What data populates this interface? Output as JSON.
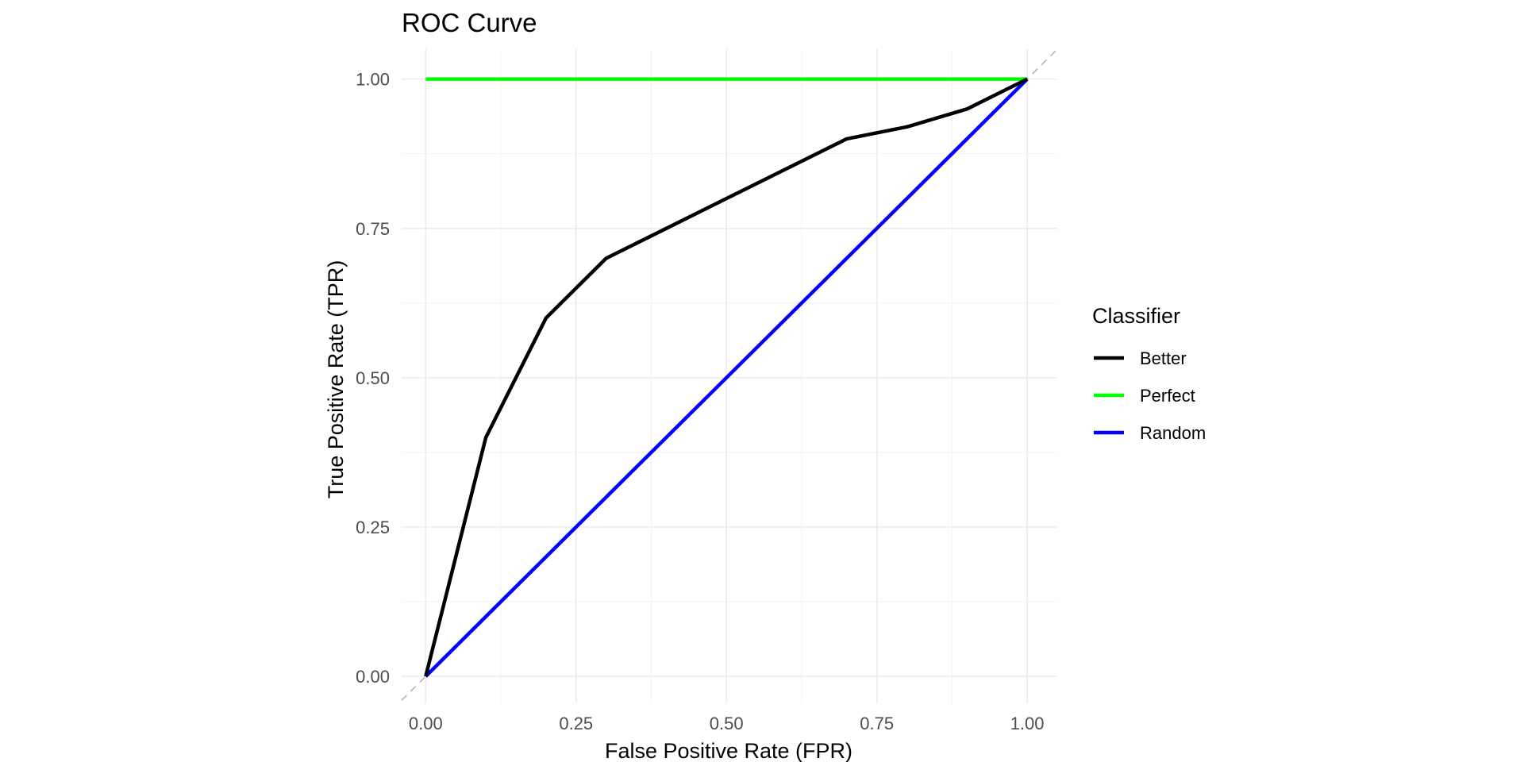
{
  "chart_data": {
    "type": "line",
    "title": "ROC Curve",
    "xlabel": "False Positive Rate (FPR)",
    "ylabel": "True Positive Rate (TPR)",
    "xlim": [
      -0.04,
      1.05
    ],
    "ylim": [
      -0.045,
      1.05
    ],
    "xticks": [
      0,
      0.25,
      0.5,
      0.75,
      1
    ],
    "xtick_labels": [
      "0.00",
      "0.25",
      "0.50",
      "0.75",
      "1.00"
    ],
    "yticks": [
      0,
      0.25,
      0.5,
      0.75,
      1
    ],
    "ytick_labels": [
      "0.00",
      "0.25",
      "0.50",
      "0.75",
      "1.00"
    ],
    "grid": true,
    "legend": {
      "title": "Classifier",
      "position": "right"
    },
    "reference_line": {
      "name": "diagonal",
      "x": [
        -0.04,
        1.05
      ],
      "y": [
        -0.04,
        1.05
      ],
      "color": "#b3b3b3",
      "style": "dashed"
    },
    "series": [
      {
        "name": "Better",
        "color": "#000000",
        "x": [
          0,
          0.1,
          0.2,
          0.3,
          0.4,
          0.5,
          0.6,
          0.7,
          0.8,
          0.9,
          1.0
        ],
        "y": [
          0,
          0.4,
          0.6,
          0.7,
          0.75,
          0.8,
          0.85,
          0.9,
          0.92,
          0.95,
          1.0
        ]
      },
      {
        "name": "Perfect",
        "color": "#00ff00",
        "x": [
          0,
          1
        ],
        "y": [
          1,
          1
        ]
      },
      {
        "name": "Random",
        "color": "#0000ff",
        "x": [
          0,
          1
        ],
        "y": [
          0,
          1
        ]
      }
    ]
  }
}
